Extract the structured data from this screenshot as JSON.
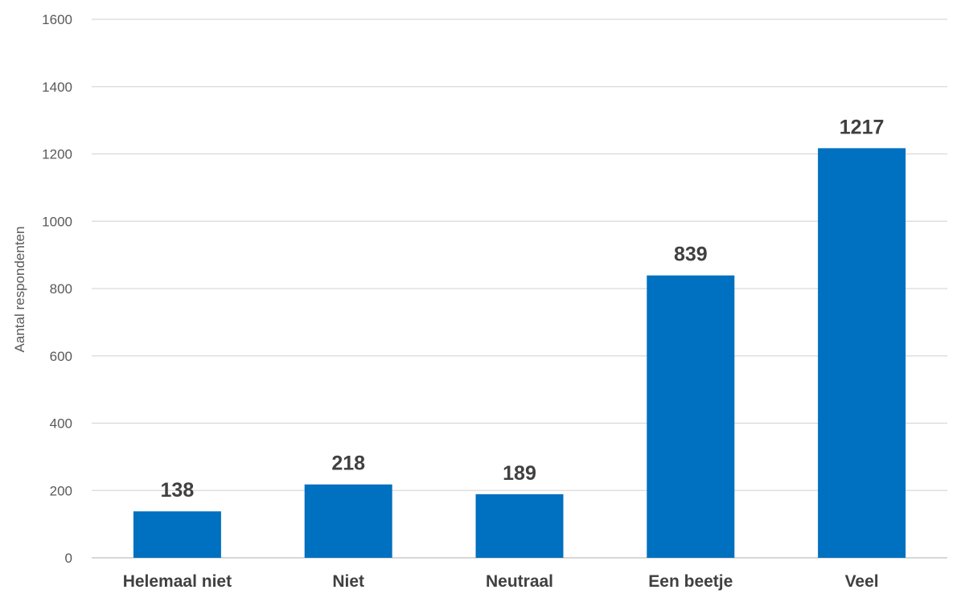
{
  "chart_data": {
    "type": "bar",
    "title": "",
    "xlabel": "",
    "ylabel": "Aantal respondenten",
    "categories": [
      "Helemaal niet",
      "Niet",
      "Neutraal",
      "Een beetje",
      "Veel"
    ],
    "values": [
      138,
      218,
      189,
      839,
      1217
    ],
    "data_labels": [
      "138",
      "218",
      "189",
      "839",
      "1217"
    ],
    "ylim": [
      0,
      1600
    ],
    "yticks": [
      0,
      200,
      400,
      600,
      800,
      1000,
      1200,
      1400,
      1600
    ],
    "ytick_labels": [
      "0",
      "200",
      "400",
      "600",
      "800",
      "1000",
      "1200",
      "1400",
      "1600"
    ],
    "grid": true,
    "legend": "none",
    "bar_color": "#0070c0"
  }
}
